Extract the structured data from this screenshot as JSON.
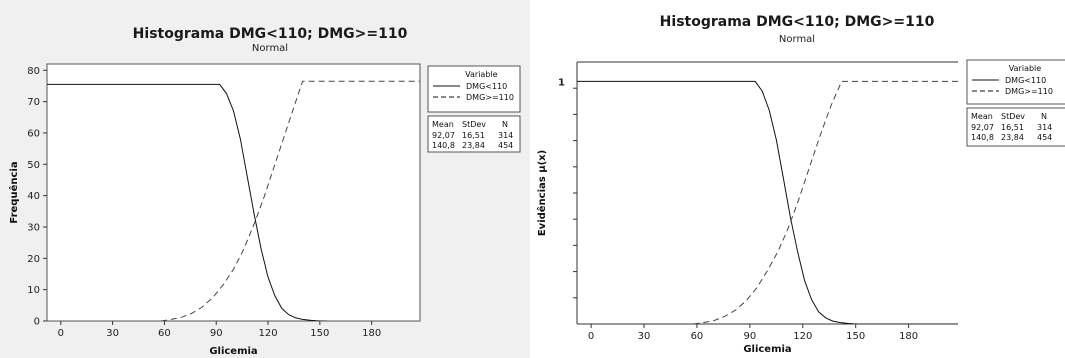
{
  "chart_data": [
    {
      "type": "line",
      "title": "Histograma DMG<110; DMG>=110",
      "subtitle": "Normal",
      "xlabel": "Glicemia",
      "ylabel": "Frequência",
      "xlim": [
        -8,
        208
      ],
      "ylim": [
        0,
        82
      ],
      "xticks": [
        0,
        30,
        60,
        90,
        120,
        150,
        180
      ],
      "yticks": [
        0,
        10,
        20,
        30,
        40,
        50,
        60,
        70,
        80
      ],
      "grid": false,
      "legend_position": "right",
      "legend": {
        "title": "Variable",
        "headers": [
          "Mean",
          "StDev",
          "N"
        ],
        "rows": [
          [
            "92,07",
            "16,51",
            "314"
          ],
          [
            "140,8",
            "23,84",
            "454"
          ]
        ]
      },
      "series": [
        {
          "name": "DMG<110",
          "style": "solid",
          "x": [
            -8,
            92,
            96,
            100,
            104,
            108,
            112,
            116,
            120,
            124,
            128,
            132,
            136,
            140,
            145,
            150,
            154
          ],
          "y": [
            75.5,
            75.5,
            72.5,
            67,
            58,
            46,
            34,
            23,
            14,
            8,
            4,
            2,
            1,
            0.5,
            0.2,
            0,
            0
          ]
        },
        {
          "name": "DMG>=110",
          "style": "dashed",
          "x": [
            58,
            64,
            70,
            76,
            82,
            88,
            94,
            100,
            106,
            112,
            118,
            124,
            130,
            136,
            140,
            208
          ],
          "y": [
            0,
            0.5,
            1.2,
            2.5,
            4.5,
            7.5,
            11.5,
            16.5,
            23,
            31,
            40,
            50,
            60,
            70,
            76.5,
            76.5
          ]
        }
      ]
    },
    {
      "type": "line",
      "title": "Histograma DMG<110; DMG>=110",
      "subtitle": "Normal",
      "xlabel": "Glicemia",
      "ylabel": "Evidências μ(x)",
      "xlim": [
        -8,
        208
      ],
      "ylim": [
        0,
        1.08
      ],
      "xticks": [
        0,
        30,
        60,
        90,
        120,
        150,
        180
      ],
      "yticks": [
        1
      ],
      "ytick_labels": [
        "1"
      ],
      "grid": false,
      "legend_position": "right",
      "legend": {
        "title": "Variable",
        "headers": [
          "Mean",
          "StDev",
          "N"
        ],
        "rows": [
          [
            "92,07",
            "16,51",
            "314"
          ],
          [
            "140,8",
            "23,84",
            "454"
          ]
        ]
      },
      "series": [
        {
          "name": "DMG<110",
          "style": "solid",
          "x": [
            -8,
            93,
            97,
            101,
            105,
            109,
            113,
            117,
            121,
            125,
            129,
            133,
            137,
            141,
            146,
            150,
            208
          ],
          "y": [
            1,
            1,
            0.96,
            0.88,
            0.76,
            0.6,
            0.44,
            0.3,
            0.18,
            0.1,
            0.05,
            0.025,
            0.012,
            0.006,
            0.002,
            0,
            0
          ]
        },
        {
          "name": "DMG>=110",
          "style": "dashed",
          "x": [
            58,
            64,
            70,
            76,
            82,
            88,
            94,
            100,
            106,
            112,
            118,
            124,
            130,
            136,
            142,
            208
          ],
          "y": [
            0,
            0.006,
            0.015,
            0.032,
            0.058,
            0.096,
            0.15,
            0.22,
            0.3,
            0.4,
            0.52,
            0.65,
            0.78,
            0.9,
            1,
            1
          ]
        }
      ]
    }
  ]
}
